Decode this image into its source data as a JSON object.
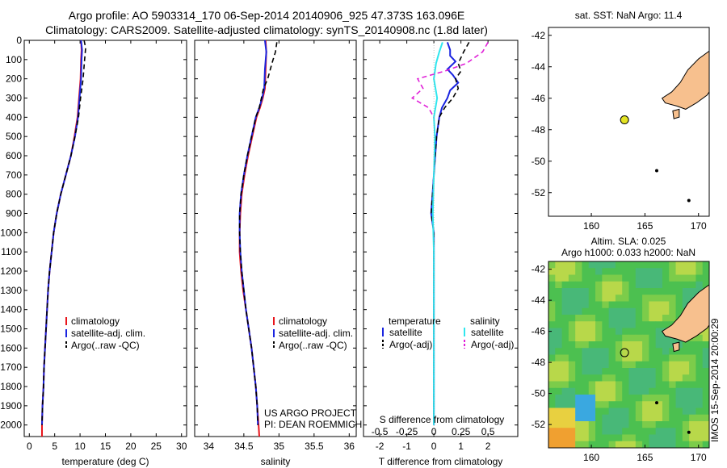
{
  "header": {
    "line1": "Argo profile: AO 5903314_170 06-Sep-2014 20140906_925 47.373S 163.096E",
    "line2": "Climatology: CARS2009. Satellite-adjusted climatology: synTS_20140908.nc (1.8d later)"
  },
  "side_text": "IMOS 15-Sep-2014 20:00:29",
  "colors": {
    "climatology": "#e8141b",
    "satellite": "#1a24e0",
    "argo": "#000000",
    "sal_satellite": "#2fe6ee",
    "sal_argo": "#e020d8",
    "land": "#f7c08e",
    "float_marker": "#e3e323"
  },
  "chart_data": [
    {
      "type": "line",
      "xlabel": "temperature (deg C)",
      "ylabel": "",
      "xlim": [
        -1,
        31
      ],
      "ylim": [
        2060,
        0
      ],
      "xticks": [
        0,
        5,
        10,
        15,
        20,
        25,
        30
      ],
      "yticks": [
        0,
        100,
        200,
        300,
        400,
        500,
        600,
        700,
        800,
        900,
        1000,
        1100,
        1200,
        1300,
        1400,
        1500,
        1600,
        1700,
        1800,
        1900,
        2000
      ],
      "legend": [
        "climatology",
        "satellite-adj. clim.",
        "Argo(..raw -QC)"
      ],
      "series": [
        {
          "name": "climatology",
          "style": "solid",
          "color": "#e8141b",
          "points": [
            [
              10.2,
              0
            ],
            [
              10.3,
              50
            ],
            [
              10.2,
              100
            ],
            [
              10.1,
              200
            ],
            [
              9.8,
              300
            ],
            [
              9.5,
              400
            ],
            [
              8.9,
              500
            ],
            [
              8.2,
              600
            ],
            [
              7.2,
              700
            ],
            [
              6.2,
              800
            ],
            [
              5.4,
              900
            ],
            [
              4.8,
              1000
            ],
            [
              4.4,
              1100
            ],
            [
              4.0,
              1200
            ],
            [
              3.7,
              1300
            ],
            [
              3.5,
              1400
            ],
            [
              3.3,
              1500
            ],
            [
              3.1,
              1600
            ],
            [
              2.9,
              1700
            ],
            [
              2.8,
              1800
            ],
            [
              2.6,
              1900
            ],
            [
              2.5,
              2000
            ],
            [
              2.5,
              2060
            ]
          ]
        },
        {
          "name": "satellite-adj. clim.",
          "style": "solid",
          "color": "#1a24e0",
          "points": [
            [
              10.2,
              0
            ],
            [
              10.4,
              50
            ],
            [
              10.3,
              100
            ],
            [
              10.2,
              200
            ],
            [
              9.9,
              300
            ],
            [
              9.6,
              400
            ],
            [
              9.0,
              500
            ],
            [
              8.2,
              600
            ],
            [
              7.2,
              700
            ],
            [
              6.2,
              800
            ],
            [
              5.4,
              900
            ],
            [
              4.8,
              1000
            ],
            [
              4.4,
              1100
            ],
            [
              4.0,
              1200
            ],
            [
              3.7,
              1300
            ],
            [
              3.5,
              1400
            ],
            [
              3.3,
              1500
            ],
            [
              3.1,
              1600
            ],
            [
              2.9,
              1700
            ],
            [
              2.8,
              1800
            ],
            [
              2.6,
              1900
            ],
            [
              2.5,
              2000
            ]
          ]
        },
        {
          "name": "Argo(..raw -QC)",
          "style": "dashed",
          "color": "#000000",
          "points": [
            [
              10.8,
              0
            ],
            [
              11.1,
              40
            ],
            [
              10.9,
              100
            ],
            [
              10.6,
              200
            ],
            [
              10.1,
              300
            ],
            [
              9.7,
              400
            ],
            [
              9.0,
              500
            ],
            [
              8.2,
              600
            ],
            [
              7.2,
              700
            ],
            [
              6.2,
              800
            ],
            [
              5.4,
              900
            ],
            [
              4.8,
              1000
            ],
            [
              4.4,
              1100
            ],
            [
              4.0,
              1200
            ],
            [
              3.7,
              1300
            ],
            [
              3.5,
              1400
            ],
            [
              3.3,
              1500
            ],
            [
              3.1,
              1600
            ],
            [
              2.9,
              1700
            ],
            [
              2.8,
              1800
            ],
            [
              2.6,
              1900
            ],
            [
              2.5,
              2000
            ]
          ]
        }
      ]
    },
    {
      "type": "line",
      "xlabel": "salinity",
      "ylabel": "",
      "xlim": [
        33.8,
        36.1
      ],
      "ylim": [
        2060,
        0
      ],
      "xticks": [
        34,
        34.5,
        35,
        35.5,
        36
      ],
      "legend": [
        "climatology",
        "satellite-adj. clim.",
        "Argo(..raw -QC)"
      ],
      "annotations": [
        "US ARGO PROJECT",
        "PI: DEAN ROEMMICH"
      ],
      "series": [
        {
          "name": "climatology",
          "style": "solid",
          "color": "#e8141b",
          "points": [
            [
              34.81,
              0
            ],
            [
              34.82,
              60
            ],
            [
              34.81,
              150
            ],
            [
              34.8,
              250
            ],
            [
              34.77,
              300
            ],
            [
              34.73,
              350
            ],
            [
              34.68,
              400
            ],
            [
              34.62,
              500
            ],
            [
              34.56,
              600
            ],
            [
              34.51,
              700
            ],
            [
              34.47,
              800
            ],
            [
              34.45,
              900
            ],
            [
              34.44,
              1000
            ],
            [
              34.44,
              1100
            ],
            [
              34.46,
              1200
            ],
            [
              34.49,
              1300
            ],
            [
              34.53,
              1400
            ],
            [
              34.57,
              1500
            ],
            [
              34.61,
              1600
            ],
            [
              34.64,
              1700
            ],
            [
              34.67,
              1800
            ],
            [
              34.69,
              1900
            ],
            [
              34.71,
              2000
            ],
            [
              34.72,
              2060
            ]
          ]
        },
        {
          "name": "satellite-adj. clim.",
          "style": "solid",
          "color": "#1a24e0",
          "points": [
            [
              34.8,
              0
            ],
            [
              34.82,
              60
            ],
            [
              34.8,
              150
            ],
            [
              34.79,
              250
            ],
            [
              34.76,
              300
            ],
            [
              34.72,
              350
            ],
            [
              34.67,
              400
            ],
            [
              34.61,
              500
            ],
            [
              34.55,
              600
            ],
            [
              34.5,
              700
            ],
            [
              34.46,
              800
            ],
            [
              34.44,
              900
            ],
            [
              34.44,
              1000
            ],
            [
              34.45,
              1100
            ],
            [
              34.47,
              1200
            ],
            [
              34.5,
              1300
            ],
            [
              34.53,
              1400
            ],
            [
              34.57,
              1500
            ],
            [
              34.61,
              1600
            ],
            [
              34.64,
              1700
            ],
            [
              34.67,
              1800
            ],
            [
              34.69,
              1900
            ],
            [
              34.7,
              2000
            ]
          ]
        },
        {
          "name": "Argo(..raw -QC)",
          "style": "dashed",
          "color": "#000000",
          "points": [
            [
              34.97,
              10
            ],
            [
              34.95,
              60
            ],
            [
              34.9,
              120
            ],
            [
              34.87,
              160
            ],
            [
              34.84,
              200
            ],
            [
              34.78,
              250
            ],
            [
              34.75,
              300
            ],
            [
              34.72,
              350
            ],
            [
              34.67,
              400
            ],
            [
              34.61,
              500
            ],
            [
              34.55,
              600
            ],
            [
              34.5,
              700
            ],
            [
              34.46,
              800
            ],
            [
              34.44,
              900
            ],
            [
              34.44,
              1000
            ],
            [
              34.45,
              1100
            ],
            [
              34.47,
              1200
            ],
            [
              34.5,
              1300
            ],
            [
              34.53,
              1400
            ],
            [
              34.57,
              1500
            ],
            [
              34.61,
              1600
            ],
            [
              34.64,
              1700
            ],
            [
              34.67,
              1800
            ],
            [
              34.69,
              1900
            ],
            [
              34.7,
              2000
            ]
          ]
        }
      ]
    },
    {
      "type": "line",
      "xlabel": "T difference from climatology",
      "xlabel_top": "S difference from climatology",
      "ylabel": "",
      "xlim": [
        -2.6,
        3.1
      ],
      "ylim": [
        2060,
        0
      ],
      "xticks": [
        -2,
        -1,
        0,
        1,
        2
      ],
      "top_xticks": [
        "-0.5",
        "-0.25",
        "0",
        "0.25",
        "0.5"
      ],
      "legend_temperature_title": "temperature",
      "legend_salinity_title": "salinity",
      "legend": [
        "satellite",
        "Argo(-adj)",
        "satellite",
        "Argo(-adj)"
      ],
      "series": [
        {
          "name": "satellite",
          "group": "temperature",
          "style": "solid",
          "color": "#1a24e0",
          "points": [
            [
              0.5,
              10
            ],
            [
              0.6,
              50
            ],
            [
              0.6,
              80
            ],
            [
              0.8,
              110
            ],
            [
              0.5,
              150
            ],
            [
              0.7,
              180
            ],
            [
              0.9,
              220
            ],
            [
              0.6,
              260
            ],
            [
              0.5,
              300
            ],
            [
              0.3,
              350
            ],
            [
              0.2,
              400
            ],
            [
              0.1,
              500
            ],
            [
              0.05,
              600
            ],
            [
              0,
              700
            ],
            [
              -0.05,
              800
            ],
            [
              -0.1,
              900
            ],
            [
              0,
              1000
            ],
            [
              0,
              1100
            ],
            [
              0,
              1300
            ],
            [
              0,
              1500
            ],
            [
              0,
              1700
            ],
            [
              0,
              1900
            ],
            [
              0,
              2000
            ]
          ]
        },
        {
          "name": "Argo(-adj)",
          "group": "temperature",
          "style": "dashed",
          "color": "#000000",
          "points": [
            [
              1.3,
              10
            ],
            [
              1.1,
              60
            ],
            [
              0.9,
              120
            ],
            [
              1.0,
              160
            ],
            [
              0.8,
              200
            ],
            [
              0.9,
              250
            ],
            [
              0.7,
              300
            ],
            [
              0.4,
              350
            ],
            [
              0.2,
              400
            ],
            [
              0.1,
              500
            ],
            [
              0.05,
              600
            ],
            [
              0,
              700
            ],
            [
              -0.05,
              800
            ],
            [
              -0.1,
              900
            ],
            [
              0,
              1000
            ],
            [
              0,
              1100
            ],
            [
              0,
              1300
            ],
            [
              0,
              1500
            ],
            [
              0,
              1700
            ],
            [
              0,
              1900
            ],
            [
              0,
              2000
            ]
          ]
        },
        {
          "name": "satellite",
          "group": "salinity",
          "style": "solid",
          "color": "#2fe6ee",
          "points": [
            [
              0.08,
              10
            ],
            [
              0.05,
              60
            ],
            [
              0.02,
              120
            ],
            [
              0.0,
              200
            ],
            [
              0.03,
              300
            ],
            [
              0.0,
              400
            ],
            [
              0.01,
              500
            ],
            [
              0.0,
              700
            ],
            [
              -0.01,
              900
            ],
            [
              0,
              1100
            ],
            [
              0,
              1400
            ],
            [
              0,
              1700
            ],
            [
              0,
              2000
            ]
          ]
        },
        {
          "name": "Argo(-adj)",
          "group": "salinity",
          "style": "dashed",
          "color": "#e020d8",
          "points": [
            [
              0.5,
              10
            ],
            [
              0.45,
              60
            ],
            [
              0.3,
              120
            ],
            [
              0.1,
              160
            ],
            [
              -0.15,
              200
            ],
            [
              -0.1,
              250
            ],
            [
              -0.2,
              300
            ],
            [
              -0.05,
              350
            ],
            [
              0,
              400
            ]
          ]
        }
      ]
    },
    {
      "type": "scatter",
      "title": "sat. SST: NaN Argo: 11.4",
      "xlim": [
        156,
        171
      ],
      "ylim": [
        -53.5,
        -41.5
      ],
      "xticks": [
        160,
        165,
        170
      ],
      "yticks": [
        -42,
        -44,
        -46,
        -48,
        -50,
        -52
      ],
      "points": [
        {
          "lon": 163.096,
          "lat": -47.373
        }
      ]
    },
    {
      "type": "heatmap",
      "title_line1": "Altim. SLA: 0.025",
      "title_line2": "Argo h1000: 0.033 h2000: NaN",
      "xlim": [
        156,
        171
      ],
      "ylim": [
        -53.5,
        -41.5
      ],
      "xticks": [
        160,
        165,
        170
      ],
      "yticks": [
        -42,
        -44,
        -46,
        -48,
        -50,
        -52
      ],
      "points": [
        {
          "lon": 163.096,
          "lat": -47.373
        }
      ]
    }
  ]
}
